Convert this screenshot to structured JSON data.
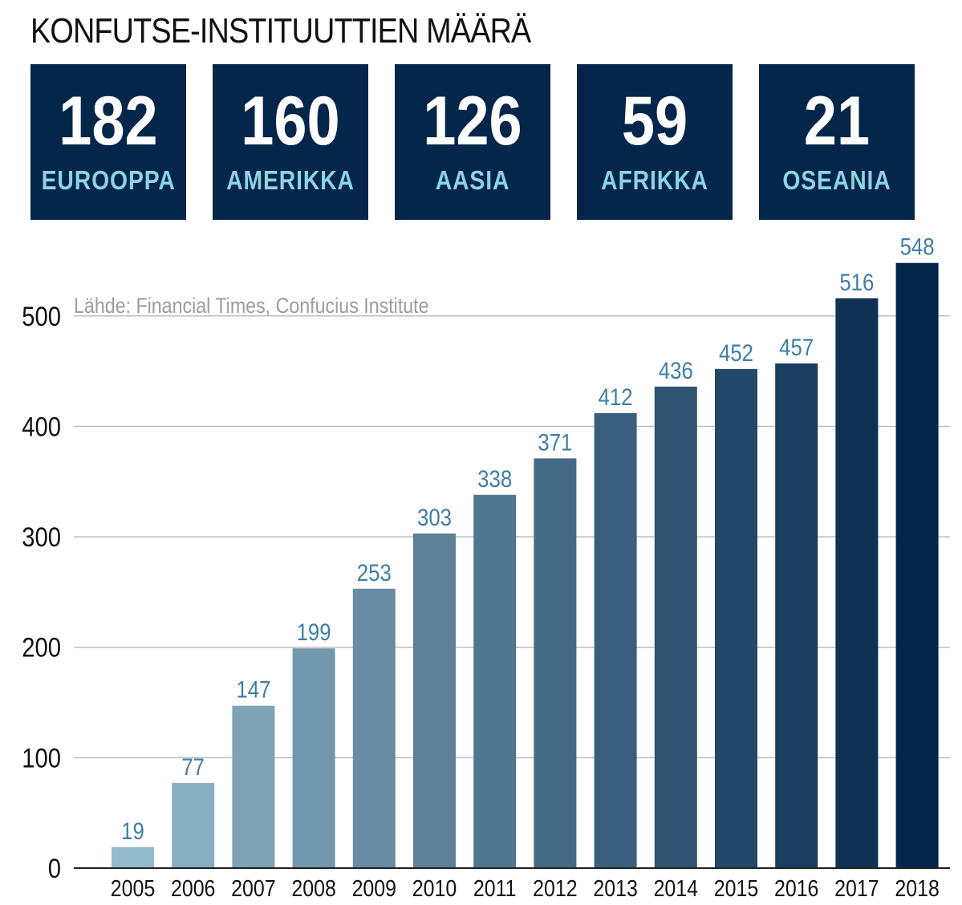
{
  "header": {
    "title": "KONFUTSE-INSTITUUTTIEN MÄÄRÄ"
  },
  "stats": [
    {
      "value": "182",
      "label": "EUROOPPA"
    },
    {
      "value": "160",
      "label": "AMERIKKA"
    },
    {
      "value": "126",
      "label": "AASIA"
    },
    {
      "value": "59",
      "label": "AFRIKKA"
    },
    {
      "value": "21",
      "label": "OSEANIA"
    }
  ],
  "colors": {
    "box_background": "#03264a",
    "stat_label": "#8ed2e3",
    "data_label": "#3f7ea6",
    "source_text": "#9c9c9c",
    "gridline": "#bdbdbd",
    "bar_light": "#93bacb",
    "bar_dark": "#03264a"
  },
  "chart_data": {
    "type": "bar",
    "title": "KONFUTSE-INSTITUUTTIEN MÄÄRÄ",
    "source": "Lähde: Financial Times, Confucius Institute",
    "xlabel": "",
    "ylabel": "",
    "categories": [
      "2005",
      "2006",
      "2007",
      "2008",
      "2009",
      "2010",
      "2011",
      "2012",
      "2013",
      "2014",
      "2015",
      "2016",
      "2017",
      "2018"
    ],
    "values": [
      19,
      77,
      147,
      199,
      253,
      303,
      338,
      371,
      412,
      436,
      452,
      457,
      516,
      548
    ],
    "yticks": [
      0,
      100,
      200,
      300,
      400,
      500
    ],
    "ylim": [
      0,
      500
    ],
    "grid": true,
    "legend": "none"
  }
}
